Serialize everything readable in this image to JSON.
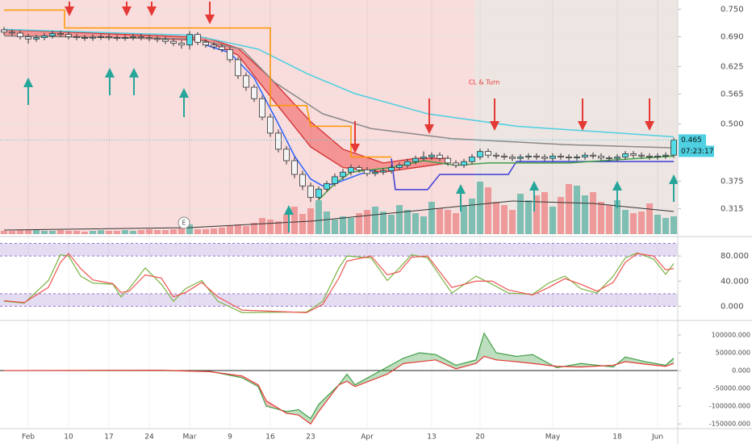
{
  "chart_data": [
    {
      "type": "candlestick",
      "xlim": [
        -3.5,
        80.5
      ],
      "ylim": [
        0.26,
        0.77
      ],
      "yticks": [
        {
          "value": 0.75,
          "label": "0.750"
        },
        {
          "value": 0.69,
          "label": "0.690"
        },
        {
          "value": 0.625,
          "label": "0.625"
        },
        {
          "value": 0.565,
          "label": "0.565"
        },
        {
          "value": 0.5,
          "label": "0.500"
        },
        {
          "value": 0.375,
          "label": "0.375"
        },
        {
          "value": 0.315,
          "label": "0.315"
        }
      ],
      "grid": true,
      "up_color": "#52dde6",
      "down_color": "#f4f4f4",
      "x": [
        -3,
        -2,
        -1,
        0,
        1,
        2,
        3,
        4,
        5,
        6,
        7,
        8,
        9,
        10,
        11,
        12,
        13,
        14,
        15,
        16,
        17,
        18,
        19,
        20,
        21,
        22,
        23,
        24,
        25,
        26,
        27,
        28,
        29,
        30,
        31,
        32,
        33,
        34,
        35,
        36,
        37,
        38,
        39,
        40,
        41,
        42,
        43,
        44,
        45,
        46,
        47,
        48,
        49,
        50,
        51,
        52,
        53,
        54,
        55,
        56,
        57,
        58,
        59,
        60,
        61,
        62,
        63,
        64,
        65,
        66,
        67,
        68,
        69,
        70,
        71,
        72,
        73,
        74,
        75,
        76,
        77,
        78,
        79,
        80
      ],
      "open": [
        0.705,
        0.7,
        0.698,
        0.69,
        0.685,
        0.688,
        0.692,
        0.697,
        0.695,
        0.69,
        0.688,
        0.687,
        0.689,
        0.69,
        0.688,
        0.687,
        0.688,
        0.69,
        0.688,
        0.686,
        0.684,
        0.68,
        0.676,
        0.672,
        0.695,
        0.678,
        0.672,
        0.668,
        0.662,
        0.64,
        0.605,
        0.58,
        0.555,
        0.515,
        0.48,
        0.445,
        0.42,
        0.39,
        0.365,
        0.34,
        0.358,
        0.37,
        0.385,
        0.395,
        0.405,
        0.4,
        0.392,
        0.395,
        0.398,
        0.405,
        0.41,
        0.418,
        0.425,
        0.428,
        0.432,
        0.425,
        0.415,
        0.41,
        0.418,
        0.428,
        0.44,
        0.432,
        0.43,
        0.428,
        0.425,
        0.428,
        0.43,
        0.428,
        0.425,
        0.43,
        0.428,
        0.426,
        0.428,
        0.432,
        0.43,
        0.426,
        0.425,
        0.428,
        0.435,
        0.432,
        0.43,
        0.428,
        0.43,
        0.432
      ],
      "high": [
        0.711,
        0.706,
        0.704,
        0.696,
        0.694,
        0.698,
        0.703,
        0.703,
        0.701,
        0.696,
        0.694,
        0.695,
        0.696,
        0.696,
        0.694,
        0.694,
        0.696,
        0.696,
        0.694,
        0.692,
        0.69,
        0.686,
        0.682,
        0.702,
        0.7,
        0.684,
        0.678,
        0.674,
        0.668,
        0.646,
        0.612,
        0.586,
        0.562,
        0.522,
        0.488,
        0.452,
        0.428,
        0.398,
        0.372,
        0.364,
        0.376,
        0.392,
        0.402,
        0.412,
        0.41,
        0.406,
        0.401,
        0.404,
        0.411,
        0.416,
        0.424,
        0.431,
        0.44,
        0.438,
        0.438,
        0.431,
        0.421,
        0.424,
        0.434,
        0.446,
        0.446,
        0.438,
        0.436,
        0.434,
        0.434,
        0.436,
        0.436,
        0.434,
        0.436,
        0.436,
        0.434,
        0.434,
        0.438,
        0.438,
        0.436,
        0.431,
        0.434,
        0.441,
        0.441,
        0.438,
        0.436,
        0.436,
        0.438,
        0.47
      ],
      "low": [
        0.694,
        0.692,
        0.684,
        0.675,
        0.679,
        0.682,
        0.686,
        0.689,
        0.684,
        0.682,
        0.681,
        0.681,
        0.683,
        0.682,
        0.681,
        0.681,
        0.682,
        0.682,
        0.68,
        0.678,
        0.674,
        0.67,
        0.664,
        0.662,
        0.672,
        0.666,
        0.662,
        0.656,
        0.634,
        0.598,
        0.572,
        0.548,
        0.508,
        0.472,
        0.438,
        0.412,
        0.382,
        0.356,
        0.33,
        0.334,
        0.352,
        0.364,
        0.378,
        0.388,
        0.394,
        0.386,
        0.386,
        0.389,
        0.392,
        0.399,
        0.404,
        0.412,
        0.419,
        0.422,
        0.419,
        0.409,
        0.404,
        0.404,
        0.412,
        0.422,
        0.426,
        0.424,
        0.422,
        0.419,
        0.419,
        0.422,
        0.422,
        0.419,
        0.419,
        0.422,
        0.42,
        0.42,
        0.422,
        0.424,
        0.42,
        0.419,
        0.419,
        0.422,
        0.426,
        0.424,
        0.422,
        0.422,
        0.424,
        0.426
      ],
      "close": [
        0.7,
        0.698,
        0.69,
        0.685,
        0.688,
        0.692,
        0.697,
        0.695,
        0.69,
        0.688,
        0.687,
        0.689,
        0.69,
        0.688,
        0.687,
        0.688,
        0.69,
        0.688,
        0.686,
        0.684,
        0.68,
        0.676,
        0.672,
        0.695,
        0.678,
        0.672,
        0.668,
        0.662,
        0.64,
        0.605,
        0.58,
        0.555,
        0.515,
        0.48,
        0.445,
        0.42,
        0.39,
        0.365,
        0.34,
        0.358,
        0.37,
        0.385,
        0.395,
        0.405,
        0.4,
        0.392,
        0.395,
        0.398,
        0.405,
        0.41,
        0.418,
        0.425,
        0.428,
        0.432,
        0.425,
        0.415,
        0.41,
        0.418,
        0.428,
        0.44,
        0.432,
        0.43,
        0.428,
        0.425,
        0.428,
        0.43,
        0.428,
        0.425,
        0.43,
        0.428,
        0.426,
        0.428,
        0.432,
        0.43,
        0.426,
        0.425,
        0.428,
        0.435,
        0.432,
        0.43,
        0.428,
        0.43,
        0.432,
        0.465
      ],
      "volume": {
        "ylim": [
          0,
          100
        ],
        "up_color": "#7fbfb3",
        "down_color": "#ef9a9a",
        "values": [
          4,
          4,
          5,
          5,
          6,
          4,
          4,
          5,
          4,
          4,
          3,
          4,
          5,
          4,
          4,
          5,
          4,
          5,
          6,
          5,
          5,
          6,
          7,
          12,
          6,
          6,
          7,
          8,
          10,
          12,
          10,
          14,
          20,
          18,
          16,
          24,
          34,
          25,
          32,
          42,
          28,
          18,
          22,
          20,
          26,
          30,
          34,
          28,
          24,
          36,
          30,
          26,
          22,
          40,
          32,
          30,
          26,
          36,
          44,
          65,
          58,
          40,
          36,
          30,
          50,
          42,
          48,
          52,
          34,
          46,
          62,
          60,
          48,
          52,
          40,
          36,
          42,
          30,
          26,
          28,
          38,
          24,
          20,
          22
        ],
        "ma": {
          "color": "#333333",
          "x": [
            -3,
            20,
            35,
            45,
            60,
            70,
            80
          ],
          "values": [
            5,
            8,
            16,
            26,
            41,
            38,
            28
          ]
        }
      },
      "band": {
        "color": "#f05a5a",
        "x": [
          -3,
          5,
          15,
          22,
          26,
          30,
          35,
          39,
          44,
          48,
          52
        ],
        "upper": [
          0.705,
          0.7,
          0.693,
          0.688,
          0.665,
          0.6,
          0.505,
          0.445,
          0.415,
          0.425,
          0.425
        ],
        "lower": [
          0.692,
          0.69,
          0.686,
          0.682,
          0.65,
          0.56,
          0.45,
          0.405,
          0.395,
          0.405,
          0.415
        ]
      },
      "lines": [
        {
          "color": "#4dd0e1",
          "x": [
            -3,
            20.5,
            28.5,
            34.5,
            40.5,
            49.5,
            60.5,
            80
          ],
          "values": [
            0.706,
            0.693,
            0.663,
            0.61,
            0.566,
            0.522,
            0.495,
            0.472
          ]
        },
        {
          "color": "#8a8a8a",
          "x": [
            -3,
            20.5,
            26.5,
            30.5,
            36.5,
            42.5,
            52.5,
            66.5,
            80
          ],
          "values": [
            0.692,
            0.685,
            0.663,
            0.591,
            0.522,
            0.49,
            0.468,
            0.455,
            0.448
          ]
        },
        {
          "color": "#ff9800",
          "x": [
            -3,
            4.5,
            4.5,
            30,
            30,
            34.5,
            35,
            40,
            40,
            45
          ],
          "values": [
            0.748,
            0.748,
            0.709,
            0.709,
            0.54,
            0.54,
            0.495,
            0.495,
            0.428,
            0.428
          ]
        },
        {
          "color": "#3d3dd6",
          "x": [
            45,
            45.5,
            49.5,
            51,
            59.5,
            60.5,
            80
          ],
          "values": [
            0.425,
            0.357,
            0.357,
            0.39,
            0.39,
            0.418,
            0.418
          ]
        },
        {
          "color": "#2962ff",
          "x": [
            22,
            25,
            28,
            31,
            33,
            35,
            36.5,
            38,
            41,
            43
          ],
          "values": [
            0.672,
            0.655,
            0.6,
            0.5,
            0.43,
            0.38,
            0.365,
            0.37,
            0.39,
            0.4
          ]
        },
        {
          "color": "#43a047",
          "x": [
            36,
            38,
            40,
            45,
            49,
            53,
            57,
            67,
            80
          ],
          "values": [
            0.335,
            0.37,
            0.395,
            0.405,
            0.42,
            0.41,
            0.415,
            0.415,
            0.43
          ]
        }
      ],
      "last_price": 0.465,
      "countdown": "07:23:17",
      "annotations": [
        "CL & Turn",
        "E"
      ]
    },
    {
      "type": "line",
      "xlim": [
        -3.5,
        80.5
      ],
      "ylim": [
        -20,
        102
      ],
      "yticks": [
        {
          "value": 80,
          "label": "80.000"
        },
        {
          "value": 40,
          "label": "40.000"
        },
        {
          "value": 0,
          "label": "0.000"
        }
      ],
      "bands": [
        [
          80,
          100
        ],
        [
          0,
          20
        ]
      ],
      "band_color": "#b39ddb",
      "series": [
        {
          "color": "#7cb342",
          "x": [
            -3,
            -0.5,
            2.5,
            4,
            5,
            6.5,
            8,
            10.5,
            11.5,
            12.5,
            14.5,
            16.5,
            18,
            19.5,
            21.5,
            23.5,
            26.5,
            34.5,
            36.5,
            38.5,
            39.5,
            42.5,
            44.5,
            46,
            47.5,
            49.5,
            52.5,
            55.5,
            57.5,
            59.5,
            62.5,
            64.5,
            66.5,
            68.5,
            70.5,
            72.5,
            74,
            75.5,
            77.5,
            79,
            80
          ],
          "values": [
            8,
            5,
            41,
            82,
            80,
            48,
            37,
            35,
            15,
            28,
            61,
            35,
            8,
            28,
            41,
            8,
            -10,
            -9,
            8,
            61,
            80,
            77,
            41,
            61,
            82,
            77,
            21,
            48,
            35,
            21,
            19,
            37,
            48,
            28,
            21,
            48,
            77,
            85,
            75,
            51,
            68
          ]
        },
        {
          "color": "#ef5350",
          "x": [
            -3,
            -0.5,
            2.5,
            4,
            5,
            6.5,
            8,
            10.5,
            11.5,
            12.5,
            14.5,
            16.5,
            18,
            19.5,
            21.5,
            23.5,
            26.5,
            34.5,
            36.5,
            38.5,
            39.5,
            42.5,
            44.5,
            46,
            47.5,
            49.5,
            52.5,
            55.5,
            57.5,
            59.5,
            62.5,
            64.5,
            66.5,
            68.5,
            70.5,
            72.5,
            74,
            75.5,
            77.5,
            79,
            80
          ],
          "values": [
            9,
            6,
            30,
            70,
            84,
            60,
            42,
            36,
            22,
            24,
            50,
            45,
            15,
            22,
            38,
            15,
            -6,
            -10,
            3,
            45,
            72,
            80,
            50,
            55,
            78,
            80,
            30,
            40,
            40,
            26,
            18,
            30,
            44,
            35,
            24,
            38,
            70,
            84,
            80,
            58,
            60
          ]
        }
      ]
    },
    {
      "type": "line",
      "xlim": [
        -3.5,
        80.5
      ],
      "ylim": [
        -161000,
        134000
      ],
      "yticks": [
        {
          "value": 100000,
          "label": "100000.000"
        },
        {
          "value": 50000,
          "label": "50000.000"
        },
        {
          "value": 0,
          "label": "0.000"
        },
        {
          "value": -50000,
          "label": "-50000.000"
        },
        {
          "value": -100000,
          "label": "-100000.000"
        },
        {
          "value": -150000,
          "label": "-150000.000"
        }
      ],
      "xticks": [
        {
          "value": 0,
          "label": "Feb"
        },
        {
          "value": 5,
          "label": "10"
        },
        {
          "value": 10,
          "label": "17"
        },
        {
          "value": 15,
          "label": "24"
        },
        {
          "value": 20,
          "label": "Mar"
        },
        {
          "value": 25,
          "label": "9"
        },
        {
          "value": 30,
          "label": "16"
        },
        {
          "value": 35,
          "label": "23"
        },
        {
          "value": 42,
          "label": "Apr"
        },
        {
          "value": 50,
          "label": "13"
        },
        {
          "value": 56,
          "label": "20"
        },
        {
          "value": 65,
          "label": "May"
        },
        {
          "value": 73,
          "label": "18"
        },
        {
          "value": 78,
          "label": "Jun"
        }
      ],
      "zero_line": true,
      "fill_between": true,
      "series": [
        {
          "color": "#43a047",
          "x": [
            -3,
            16.5,
            22.5,
            26.5,
            28.5,
            29.5,
            32,
            33.5,
            35,
            36,
            38.5,
            39.5,
            40.5,
            44.5,
            46.5,
            48.5,
            50.5,
            53,
            55.5,
            56.5,
            58,
            60.5,
            62.5,
            65.5,
            68.5,
            72.5,
            74,
            76.5,
            79,
            80
          ],
          "values": [
            0,
            0,
            -2000,
            -20000,
            -45000,
            -100000,
            -115000,
            -110000,
            -135000,
            -95000,
            -40000,
            -10000,
            -40000,
            10000,
            35000,
            50000,
            45000,
            15000,
            30000,
            105000,
            50000,
            40000,
            45000,
            8000,
            20000,
            10000,
            38000,
            25000,
            15000,
            35000
          ]
        },
        {
          "color": "#e53935",
          "x": [
            -3,
            16.5,
            22.5,
            26.5,
            28.5,
            29.5,
            32,
            33.5,
            35,
            36,
            38.5,
            39.5,
            40.5,
            44.5,
            46.5,
            48.5,
            50.5,
            53,
            55.5,
            56.5,
            58,
            60.5,
            62.5,
            65.5,
            68.5,
            72.5,
            74,
            76.5,
            79,
            80
          ],
          "values": [
            0,
            1000,
            -3000,
            -15000,
            -40000,
            -85000,
            -120000,
            -125000,
            -150000,
            -115000,
            -40000,
            -30000,
            -45000,
            -10000,
            20000,
            25000,
            30000,
            5000,
            20000,
            40000,
            30000,
            25000,
            20000,
            12000,
            10000,
            15000,
            25000,
            18000,
            12000,
            20000
          ]
        }
      ]
    }
  ]
}
